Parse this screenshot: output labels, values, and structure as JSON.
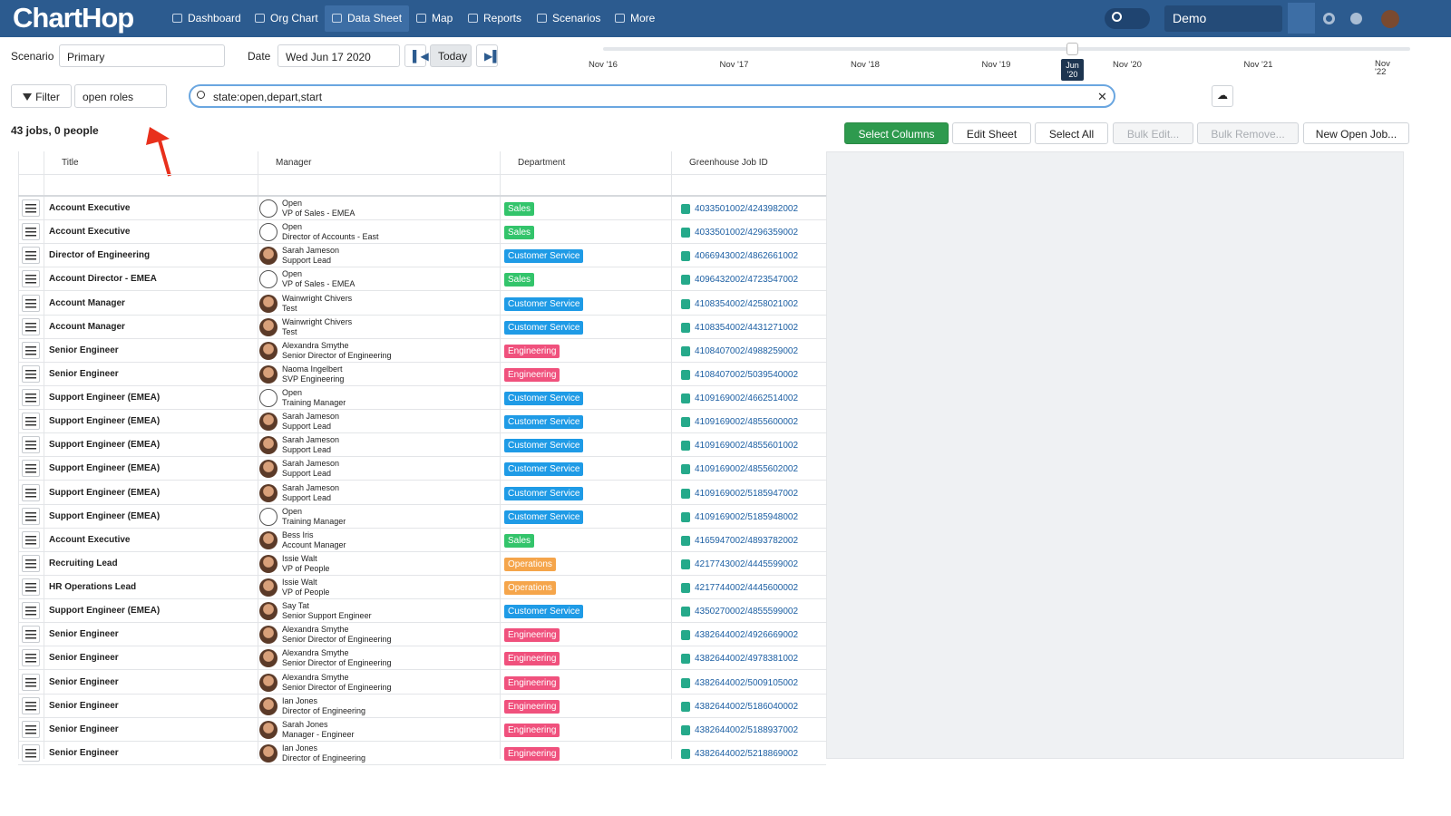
{
  "nav": {
    "logo": "ChartHop",
    "items": [
      "Dashboard",
      "Org Chart",
      "Data Sheet",
      "Map",
      "Reports",
      "Scenarios",
      "More"
    ],
    "account": "Demo"
  },
  "toolbar": {
    "scenario_label": "Scenario",
    "scenario": "Primary",
    "date_label": "Date",
    "date": "Wed Jun 17 2020",
    "today": "Today"
  },
  "timeline": {
    "labels": [
      "Nov '16",
      "Nov '17",
      "Nov '18",
      "Nov '19",
      "Nov '20",
      "Nov '21",
      "Nov '22"
    ],
    "current": "Jun '20"
  },
  "filter": {
    "button": "Filter",
    "preset": "open roles",
    "query": "state:open,depart,start"
  },
  "summary": "43 jobs, 0 people",
  "actions": [
    "Select Columns",
    "Edit Sheet",
    "Select All",
    "Bulk Edit...",
    "Bulk Remove...",
    "New Open Job..."
  ],
  "table": {
    "columns": [
      "Title",
      "Manager",
      "Department",
      "Greenhouse Job ID"
    ],
    "department_colors": {
      "Sales": "#33c46b",
      "Customer Service": "#1f9be6",
      "Engineering": "#f0517d",
      "Operations": "#f5a54b"
    },
    "rows": [
      {
        "title": "Account Executive",
        "manager": "Open",
        "manager_title": "VP of Sales - EMEA",
        "photo": false,
        "department": "Sales",
        "job_id": "4033501002/4243982002"
      },
      {
        "title": "Account Executive",
        "manager": "Open",
        "manager_title": "Director of Accounts - East",
        "photo": false,
        "department": "Sales",
        "job_id": "4033501002/4296359002"
      },
      {
        "title": "Director of Engineering",
        "manager": "Sarah Jameson",
        "manager_title": "Support Lead",
        "photo": true,
        "department": "Customer Service",
        "job_id": "4066943002/4862661002"
      },
      {
        "title": "Account Director - EMEA",
        "manager": "Open",
        "manager_title": "VP of Sales - EMEA",
        "photo": false,
        "department": "Sales",
        "job_id": "4096432002/4723547002"
      },
      {
        "title": "Account Manager",
        "manager": "Wainwright Chivers",
        "manager_title": "Test",
        "photo": true,
        "department": "Customer Service",
        "job_id": "4108354002/4258021002"
      },
      {
        "title": "Account Manager",
        "manager": "Wainwright Chivers",
        "manager_title": "Test",
        "photo": true,
        "department": "Customer Service",
        "job_id": "4108354002/4431271002"
      },
      {
        "title": "Senior Engineer",
        "manager": "Alexandra Smythe",
        "manager_title": "Senior Director of Engineering",
        "photo": true,
        "department": "Engineering",
        "job_id": "4108407002/4988259002"
      },
      {
        "title": "Senior Engineer",
        "manager": "Naoma Ingelbert",
        "manager_title": "SVP Engineering",
        "photo": true,
        "department": "Engineering",
        "job_id": "4108407002/5039540002"
      },
      {
        "title": "Support Engineer (EMEA)",
        "manager": "Open",
        "manager_title": "Training Manager",
        "photo": false,
        "department": "Customer Service",
        "job_id": "4109169002/4662514002"
      },
      {
        "title": "Support Engineer (EMEA)",
        "manager": "Sarah Jameson",
        "manager_title": "Support Lead",
        "photo": true,
        "department": "Customer Service",
        "job_id": "4109169002/4855600002"
      },
      {
        "title": "Support Engineer (EMEA)",
        "manager": "Sarah Jameson",
        "manager_title": "Support Lead",
        "photo": true,
        "department": "Customer Service",
        "job_id": "4109169002/4855601002"
      },
      {
        "title": "Support Engineer (EMEA)",
        "manager": "Sarah Jameson",
        "manager_title": "Support Lead",
        "photo": true,
        "department": "Customer Service",
        "job_id": "4109169002/4855602002"
      },
      {
        "title": "Support Engineer (EMEA)",
        "manager": "Sarah Jameson",
        "manager_title": "Support Lead",
        "photo": true,
        "department": "Customer Service",
        "job_id": "4109169002/5185947002"
      },
      {
        "title": "Support Engineer (EMEA)",
        "manager": "Open",
        "manager_title": "Training Manager",
        "photo": false,
        "department": "Customer Service",
        "job_id": "4109169002/5185948002"
      },
      {
        "title": "Account Executive",
        "manager": "Bess Iris",
        "manager_title": "Account Manager",
        "photo": true,
        "department": "Sales",
        "job_id": "4165947002/4893782002"
      },
      {
        "title": "Recruiting Lead",
        "manager": "Issie Walt",
        "manager_title": "VP of People",
        "photo": true,
        "department": "Operations",
        "job_id": "4217743002/4445599002"
      },
      {
        "title": "HR Operations Lead",
        "manager": "Issie Walt",
        "manager_title": "VP of People",
        "photo": true,
        "department": "Operations",
        "job_id": "4217744002/4445600002"
      },
      {
        "title": "Support Engineer (EMEA)",
        "manager": "Say Tat",
        "manager_title": "Senior Support Engineer",
        "photo": true,
        "department": "Customer Service",
        "job_id": "4350270002/4855599002"
      },
      {
        "title": "Senior Engineer",
        "manager": "Alexandra Smythe",
        "manager_title": "Senior Director of Engineering",
        "photo": true,
        "department": "Engineering",
        "job_id": "4382644002/4926669002"
      },
      {
        "title": "Senior Engineer",
        "manager": "Alexandra Smythe",
        "manager_title": "Senior Director of Engineering",
        "photo": true,
        "department": "Engineering",
        "job_id": "4382644002/4978381002"
      },
      {
        "title": "Senior Engineer",
        "manager": "Alexandra Smythe",
        "manager_title": "Senior Director of Engineering",
        "photo": true,
        "department": "Engineering",
        "job_id": "4382644002/5009105002"
      },
      {
        "title": "Senior Engineer",
        "manager": "Ian Jones",
        "manager_title": "Director of Engineering",
        "photo": true,
        "department": "Engineering",
        "job_id": "4382644002/5186040002"
      },
      {
        "title": "Senior Engineer",
        "manager": "Sarah Jones",
        "manager_title": "Manager - Engineer",
        "photo": true,
        "department": "Engineering",
        "job_id": "4382644002/5188937002"
      },
      {
        "title": "Senior Engineer",
        "manager": "Ian Jones",
        "manager_title": "Director of Engineering",
        "photo": true,
        "department": "Engineering",
        "job_id": "4382644002/5218869002"
      }
    ]
  }
}
